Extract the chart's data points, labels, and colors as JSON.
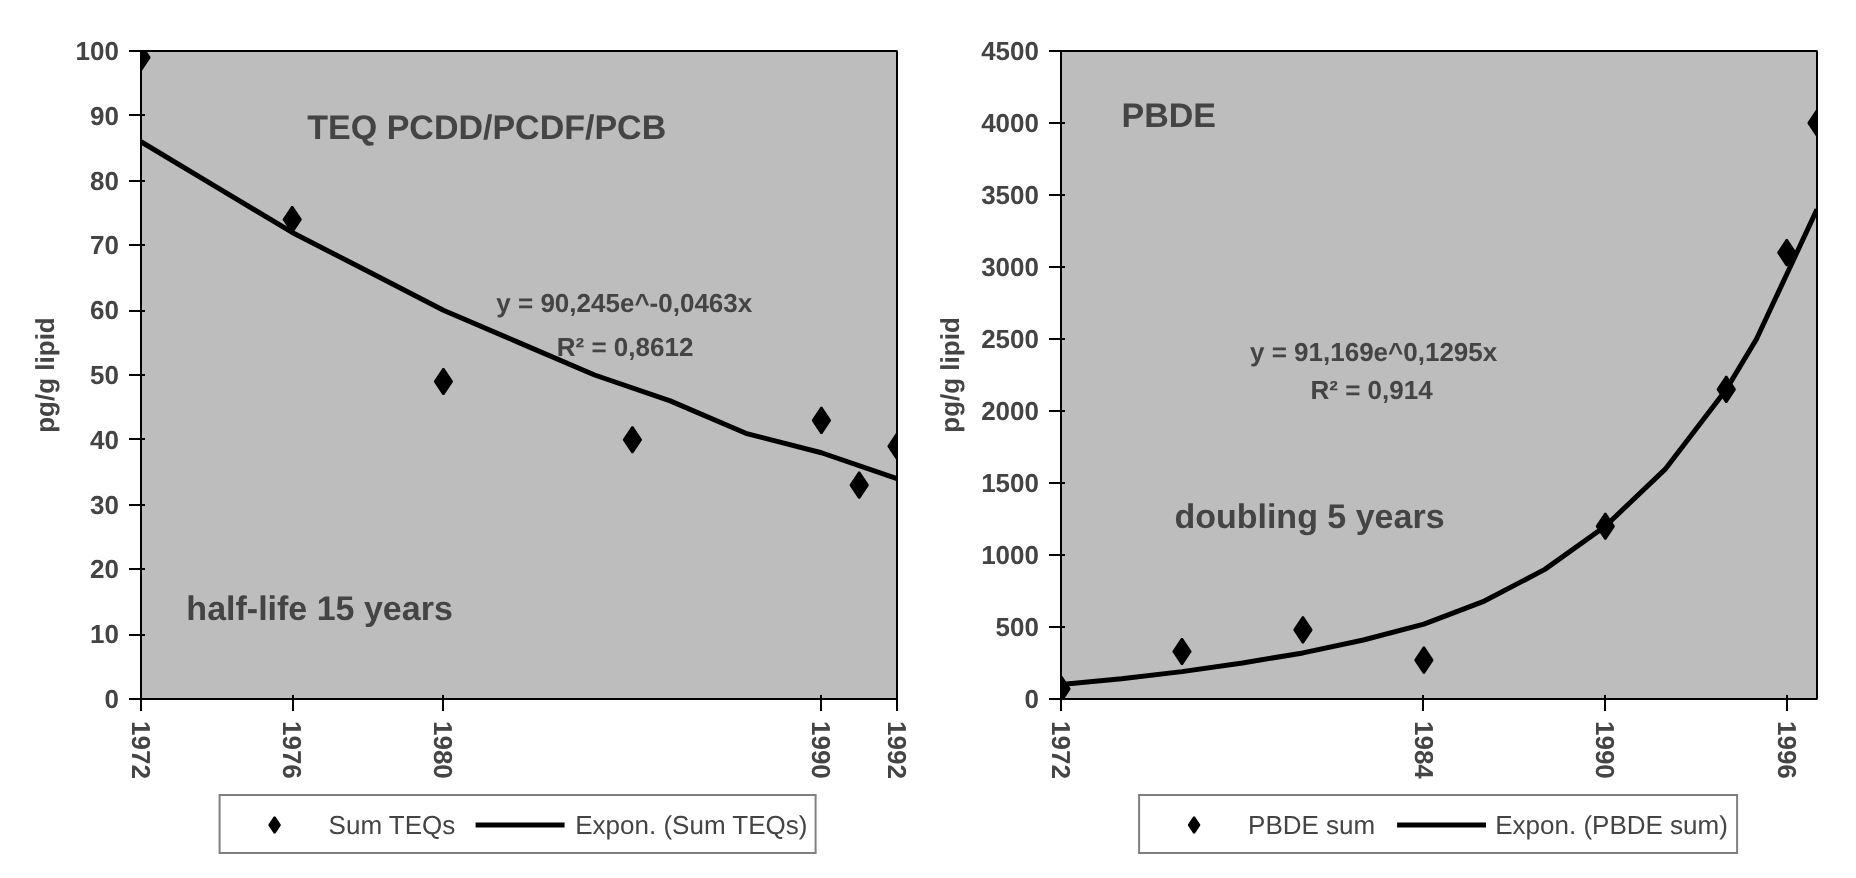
{
  "chart_data": [
    {
      "type": "scatter",
      "title": "TEQ PCDD/PCDF/PCB",
      "ylabel": "pg/g lipid",
      "annotations": [
        "y = 90,245e^-0,0463x",
        "R² = 0,8612",
        "half-life 15 years"
      ],
      "xlim": [
        1972,
        1992
      ],
      "xticks": [
        1972,
        1976,
        1980,
        1990,
        1992
      ],
      "ylim": [
        0,
        100
      ],
      "yticks": [
        0,
        10,
        20,
        30,
        40,
        50,
        60,
        70,
        80,
        90,
        100
      ],
      "grid": false,
      "legend": "bottom",
      "series": [
        {
          "name": "Sum TEQs",
          "type": "scatter",
          "marker": "diamond",
          "color": "#000000",
          "x": [
            1972,
            1976,
            1980,
            1985,
            1990,
            1991,
            1992
          ],
          "values": [
            99,
            74,
            49,
            40,
            43,
            33,
            39
          ]
        },
        {
          "name": "Expon. (Sum TEQs)",
          "type": "line",
          "marker": "none",
          "line_style": "solid",
          "color": "#000000",
          "x": [
            1972,
            1974,
            1976,
            1978,
            1980,
            1982,
            1984,
            1986,
            1988,
            1990,
            1992
          ],
          "values": [
            86,
            79,
            72,
            66,
            60,
            55,
            50,
            46,
            41,
            38,
            34
          ]
        }
      ]
    },
    {
      "type": "scatter",
      "title": "PBDE",
      "ylabel": "pg/g lipid",
      "annotations": [
        "y = 91,169e^0,1295x",
        "R² = 0,914",
        "doubling 5 years"
      ],
      "xlim": [
        1972,
        1997
      ],
      "xticks": [
        1972,
        1984,
        1990,
        1996
      ],
      "ylim": [
        0,
        4500
      ],
      "yticks": [
        0,
        500,
        1000,
        1500,
        2000,
        2500,
        3000,
        3500,
        4000,
        4500
      ],
      "grid": false,
      "legend": "bottom",
      "series": [
        {
          "name": "PBDE sum",
          "type": "scatter",
          "marker": "diamond",
          "color": "#000000",
          "x": [
            1972,
            1976,
            1980,
            1984,
            1990,
            1994,
            1996,
            1997
          ],
          "values": [
            70,
            330,
            480,
            270,
            1200,
            2150,
            3100,
            4000
          ]
        },
        {
          "name": "Expon. (PBDE sum)",
          "type": "line",
          "marker": "none",
          "line_style": "solid",
          "color": "#000000",
          "x": [
            1972,
            1974,
            1976,
            1978,
            1980,
            1982,
            1984,
            1986,
            1988,
            1990,
            1992,
            1994,
            1995,
            1996,
            1997
          ],
          "values": [
            100,
            140,
            190,
            250,
            320,
            410,
            520,
            680,
            900,
            1200,
            1600,
            2150,
            2500,
            2950,
            3400
          ]
        }
      ]
    }
  ]
}
